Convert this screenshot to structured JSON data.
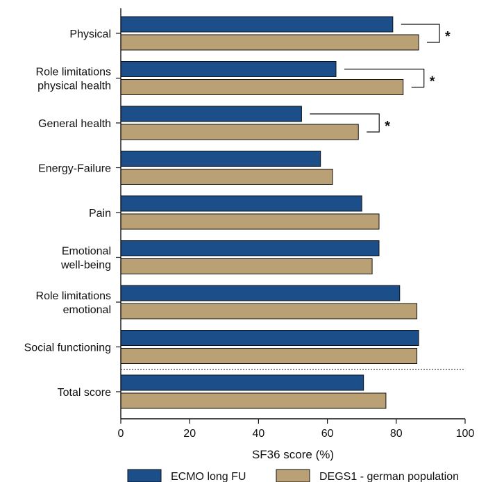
{
  "chart_data": {
    "type": "bar",
    "orientation": "horizontal",
    "categories": [
      [
        "Physical"
      ],
      [
        "Role limitations",
        "physical health"
      ],
      [
        "General health"
      ],
      [
        "Energy-Failure"
      ],
      [
        "Pain"
      ],
      [
        "Emotional",
        "well-being"
      ],
      [
        "Role limitations",
        "emotional"
      ],
      [
        "Social functioning"
      ],
      [
        "Total score"
      ]
    ],
    "series": [
      {
        "name": "ECMO long FU",
        "color": "#1c4f8a",
        "values": [
          79,
          62.5,
          52.5,
          58,
          70,
          75,
          81,
          86.5,
          70.5
        ]
      },
      {
        "name": "DEGS1 - german population",
        "color": "#baa175",
        "values": [
          86.5,
          82,
          69,
          61.5,
          75,
          73,
          86,
          86,
          77
        ]
      }
    ],
    "xlabel": "SF36 score (%)",
    "xlim": [
      0,
      100
    ],
    "xticks": [
      0,
      20,
      40,
      60,
      80,
      100
    ],
    "significance": [
      {
        "category_index": 0,
        "label": "*"
      },
      {
        "category_index": 1,
        "label": "*"
      },
      {
        "category_index": 2,
        "label": "*"
      }
    ],
    "divider_before_index": 8,
    "legend_position": "bottom"
  }
}
